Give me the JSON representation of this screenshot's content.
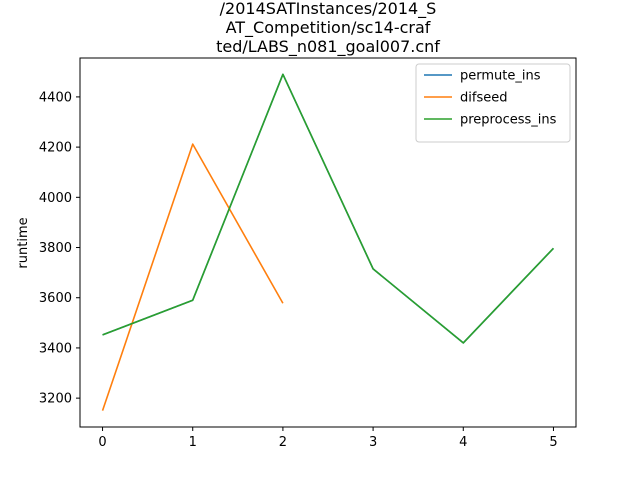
{
  "chart_data": {
    "type": "line",
    "title_lines": [
      "/2014SATInstances/2014_S",
      "AT_Competition/sc14-craf",
      "ted/LABS_n081_goal007.cnf"
    ],
    "xlabel": "",
    "ylabel": "runtime",
    "xlim": [
      -0.25,
      5.25
    ],
    "ylim": [
      3085,
      4555
    ],
    "xticks": [
      0,
      1,
      2,
      3,
      4,
      5
    ],
    "yticks": [
      3200,
      3400,
      3600,
      3800,
      4000,
      4200,
      4400
    ],
    "grid": false,
    "legend_position": "top-right",
    "series": [
      {
        "name": "permute_ins",
        "color": "#1f77b4",
        "x": [
          0,
          1,
          2,
          3,
          4,
          5
        ],
        "y": [
          3452,
          3590,
          4490,
          3715,
          3420,
          3797
        ]
      },
      {
        "name": "difseed",
        "color": "#ff7f0e",
        "x": [
          0,
          1,
          2
        ],
        "y": [
          3150,
          4212,
          3578
        ]
      },
      {
        "name": "preprocess_ins",
        "color": "#2ca02c",
        "x": [
          0,
          1,
          2,
          3,
          4,
          5
        ],
        "y": [
          3452,
          3590,
          4490,
          3715,
          3420,
          3797
        ]
      }
    ]
  }
}
